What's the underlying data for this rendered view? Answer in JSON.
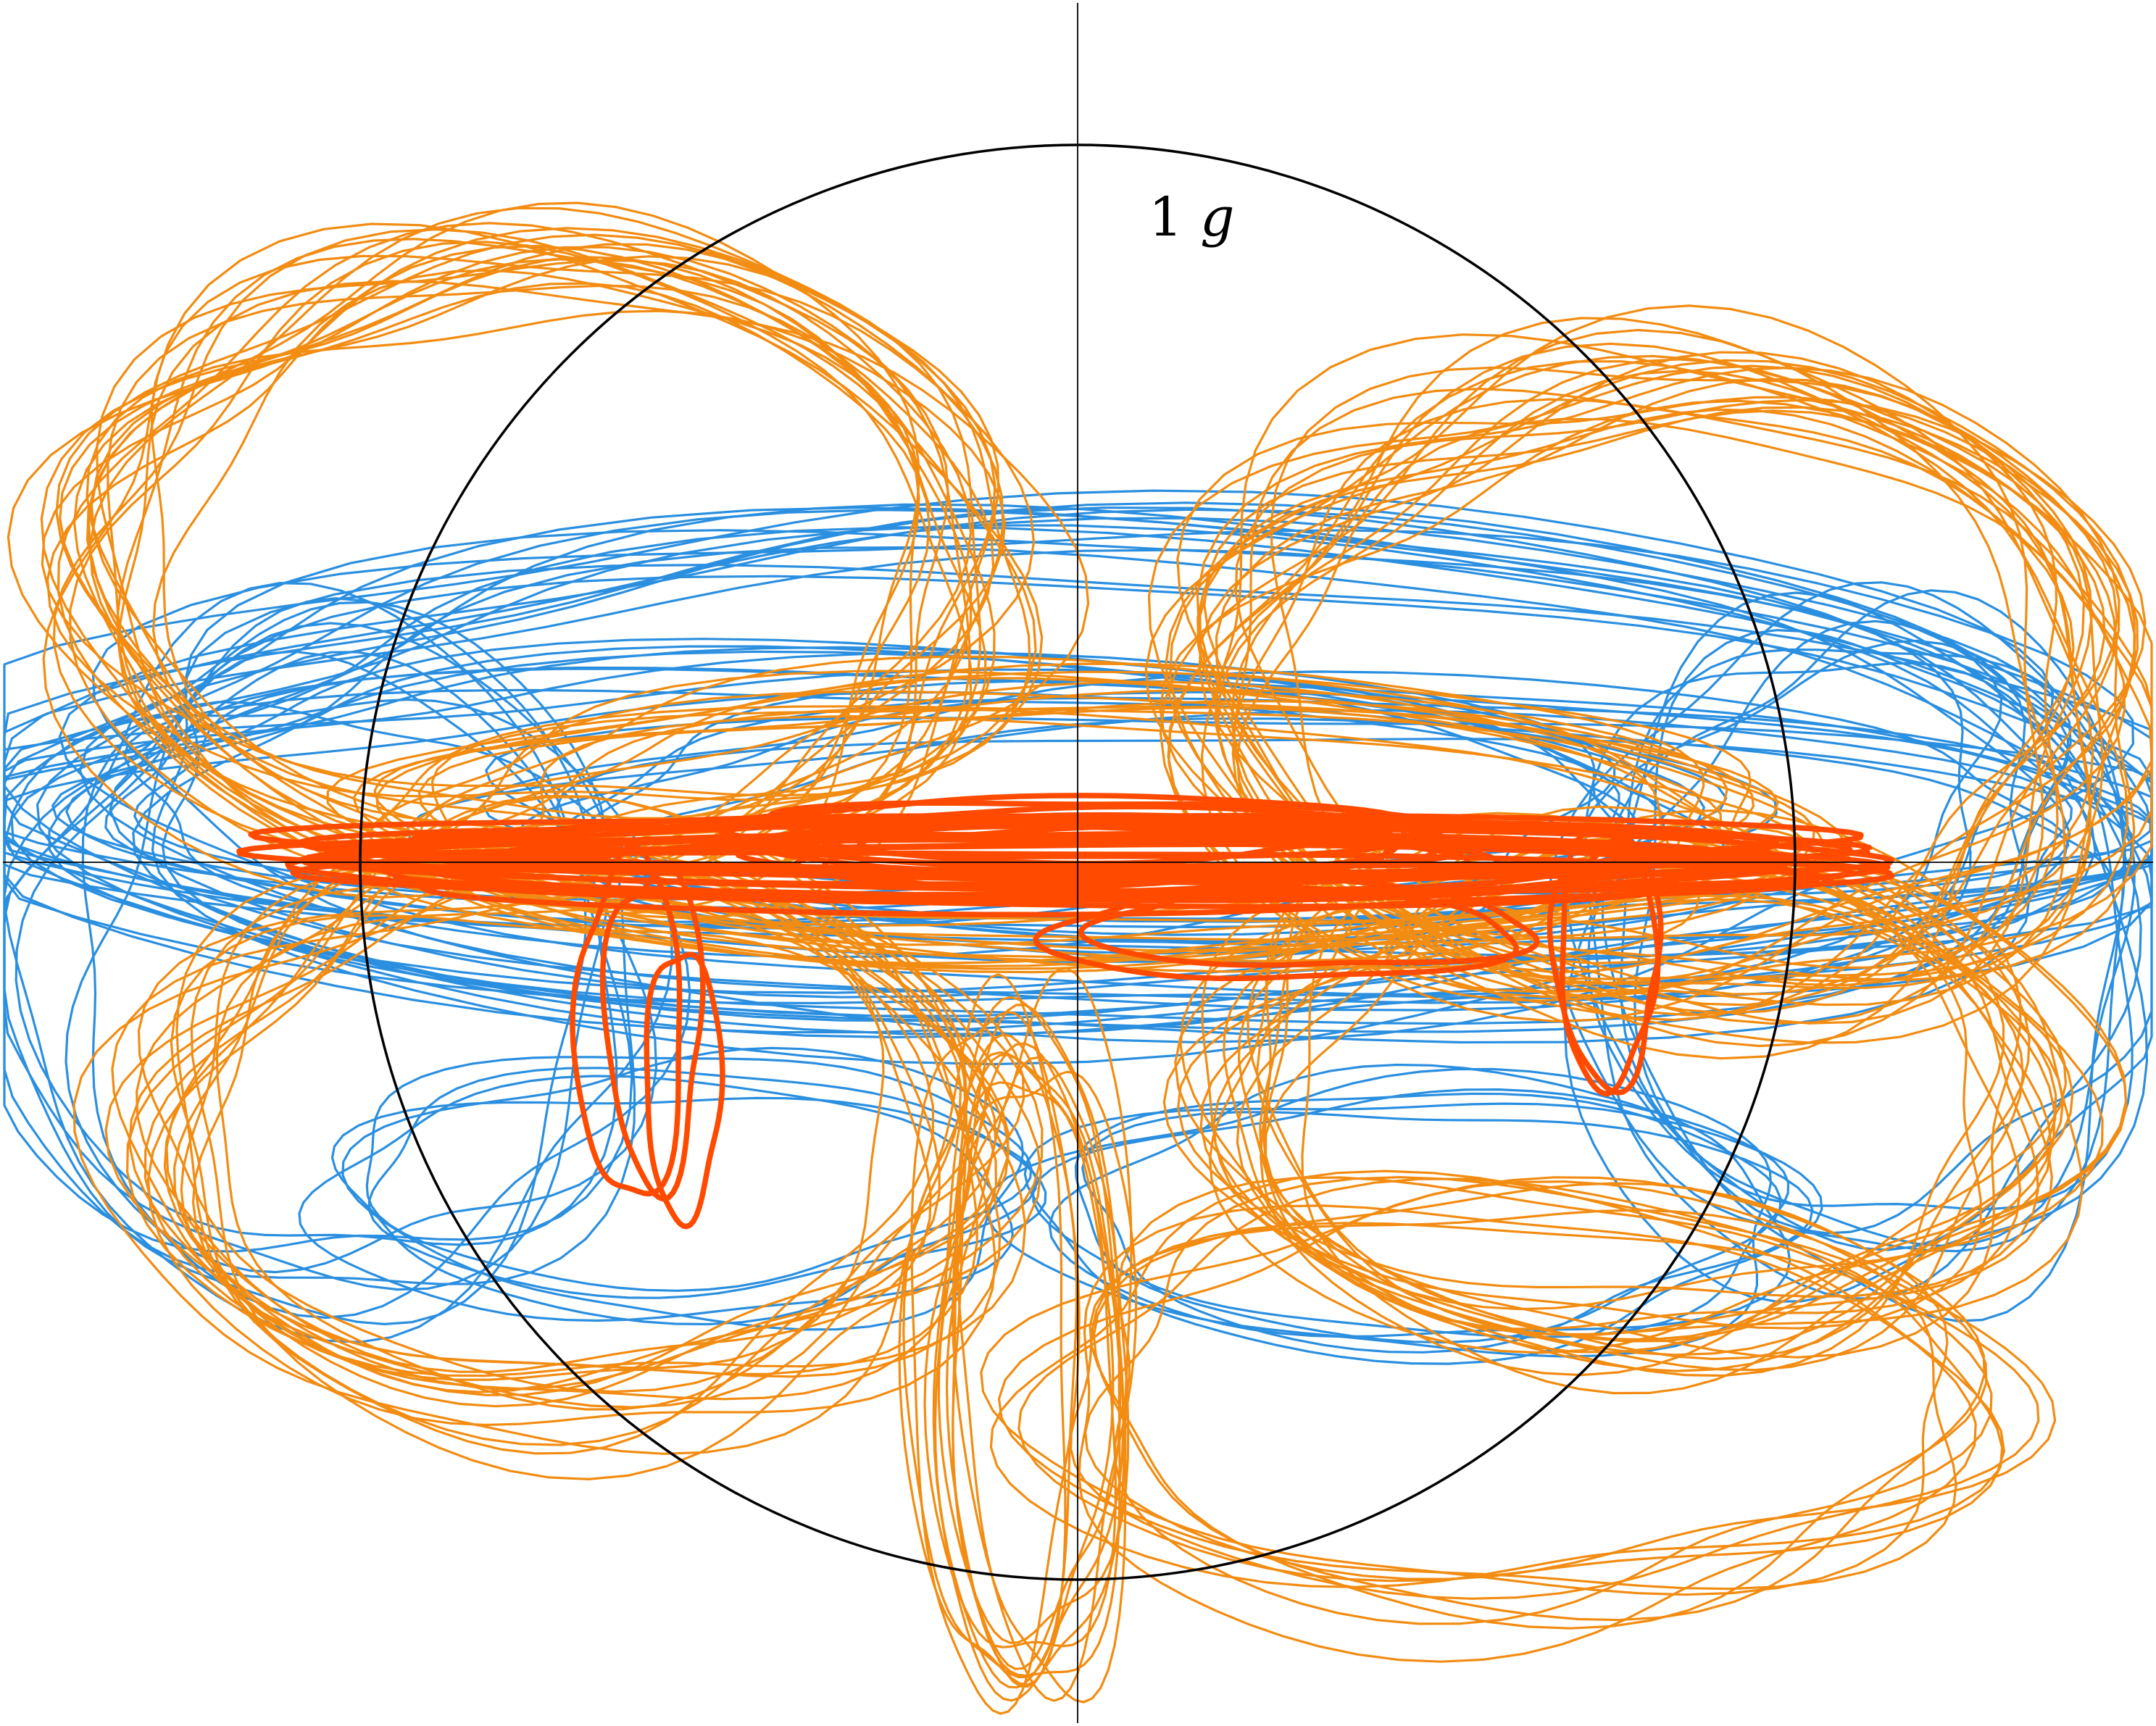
{
  "chart_data": {
    "type": "line",
    "title": "",
    "xlabel": "",
    "ylabel": "",
    "axes": {
      "visible": true,
      "ticks": false,
      "grid": false,
      "units": "g"
    },
    "xlim": [
      -1.5,
      1.5
    ],
    "ylim": [
      -1.2,
      1.2
    ],
    "reference_circle": {
      "radius": 1,
      "label_number": "1",
      "label_unit": "g",
      "color": "#000000"
    },
    "series": [
      {
        "color": "#2b8fe0",
        "draw_order": 1,
        "loops": [
          {
            "cx": 0.0,
            "cy": 0.12,
            "rx": 1.42,
            "ry": 0.33,
            "count": 16
          },
          {
            "cx": -0.3,
            "cy": 0.08,
            "rx": 1.12,
            "ry": 0.18,
            "count": 10
          },
          {
            "cx": 0.35,
            "cy": 0.06,
            "rx": 1.1,
            "ry": 0.16,
            "count": 8
          },
          {
            "cx": -1.05,
            "cy": -0.15,
            "rx": 0.42,
            "ry": 0.42,
            "count": 8
          },
          {
            "cx": 1.1,
            "cy": -0.12,
            "rx": 0.38,
            "ry": 0.44,
            "count": 8
          },
          {
            "cx": 0.45,
            "cy": -0.5,
            "rx": 0.5,
            "ry": 0.18,
            "count": 6
          },
          {
            "cx": -0.55,
            "cy": -0.45,
            "rx": 0.45,
            "ry": 0.17,
            "count": 5
          }
        ]
      },
      {
        "color": "#f28c12",
        "draw_order": 2,
        "loops": [
          {
            "cx": -0.75,
            "cy": 0.42,
            "rx": 0.62,
            "ry": 0.42,
            "count": 22
          },
          {
            "cx": 0.82,
            "cy": 0.25,
            "rx": 0.62,
            "ry": 0.42,
            "count": 24
          },
          {
            "cx": -0.72,
            "cy": -0.38,
            "rx": 0.56,
            "ry": 0.38,
            "count": 18
          },
          {
            "cx": 0.78,
            "cy": -0.33,
            "rx": 0.56,
            "ry": 0.35,
            "count": 18
          },
          {
            "cx": -0.08,
            "cy": -0.7,
            "rx": 0.12,
            "ry": 0.45,
            "count": 12
          },
          {
            "cx": 0.6,
            "cy": -0.75,
            "rx": 0.65,
            "ry": 0.28,
            "count": 10
          },
          {
            "cx": 0.0,
            "cy": 0.05,
            "rx": 0.95,
            "ry": 0.18,
            "count": 14
          }
        ]
      },
      {
        "color": "#ff4a00",
        "draw_order": 3,
        "loops": [
          {
            "cx": 0.0,
            "cy": 0.0,
            "rx": 1.0,
            "ry": 0.04,
            "count": 14
          },
          {
            "cx": 0.05,
            "cy": 0.04,
            "rx": 0.45,
            "ry": 0.04,
            "count": 8
          },
          {
            "cx": 0.3,
            "cy": -0.12,
            "rx": 0.32,
            "ry": 0.06,
            "count": 2
          },
          {
            "cx": -0.62,
            "cy": -0.2,
            "rx": 0.07,
            "ry": 0.22,
            "count": 2
          },
          {
            "cx": -0.58,
            "cy": -0.3,
            "rx": 0.05,
            "ry": 0.2,
            "count": 1
          },
          {
            "cx": 0.78,
            "cy": -0.15,
            "rx": 0.07,
            "ry": 0.18,
            "count": 2
          }
        ]
      }
    ]
  }
}
